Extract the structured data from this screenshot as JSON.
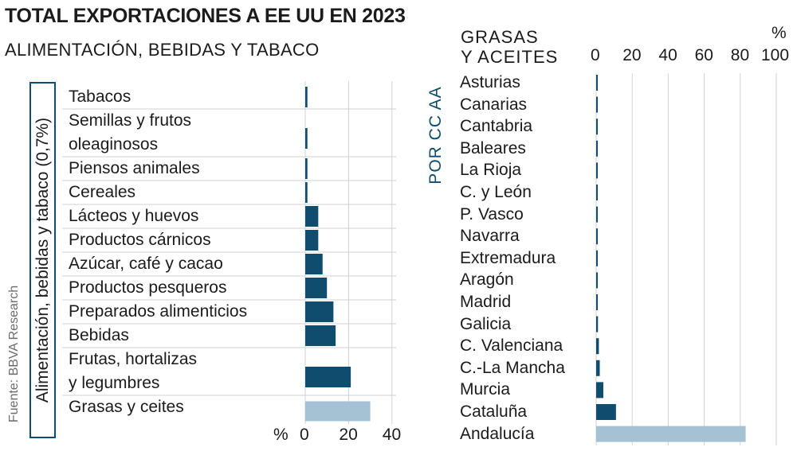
{
  "header": {
    "title": "TOTAL EXPORTACIONES A EE UU EN 2023",
    "subtitle": "ALIMENTACIÓN, BEBIDAS Y TABACO",
    "vertical_label": "Alimentación, bebidas y tabaco (0,7%)",
    "source": "Fuente: BBVA Research"
  },
  "right_header": {
    "title_line1": "GRASAS",
    "title_line2": "Y ACEITES",
    "unit": "%",
    "side_label": "POR CC AA"
  },
  "left_unit": "%",
  "colors": {
    "dark": "#0f4c6e",
    "highlight": "#a5c2d4",
    "grid": "#d2d2d2"
  },
  "chart_data": [
    {
      "type": "bar",
      "orientation": "horizontal",
      "title": "ALIMENTACIÓN, BEBIDAS Y TABACO",
      "unit": "%",
      "categories": [
        "Tabacos",
        "Semillas y frutos oleaginosos",
        "Piensos animales",
        "Cereales",
        "Lácteos y huevos",
        "Productos cárnicos",
        "Azúcar, café y cacao",
        "Productos pesqueros",
        "Preparados alimenticios",
        "Bebidas",
        "Frutas, hortalizas y legumbres",
        "Grasas y ceites"
      ],
      "category_lines": [
        [
          "Tabacos"
        ],
        [
          "Semillas y frutos",
          "oleaginosos"
        ],
        [
          "Piensos animales"
        ],
        [
          "Cereales"
        ],
        [
          "Lácteos y huevos"
        ],
        [
          "Productos cárnicos"
        ],
        [
          "Azúcar, café y cacao"
        ],
        [
          "Productos pesqueros"
        ],
        [
          "Preparados alimenticios"
        ],
        [
          "Bebidas"
        ],
        [
          "Frutas, hortalizas",
          "y legumbres"
        ],
        [
          "Grasas y ceites"
        ]
      ],
      "values": [
        1,
        1,
        1,
        1,
        6,
        6,
        8,
        10,
        13,
        14,
        21,
        30
      ],
      "highlight": "Grasas y ceites",
      "xlim": [
        0,
        40
      ],
      "xticks": [
        0,
        20,
        40
      ]
    },
    {
      "type": "bar",
      "orientation": "horizontal",
      "title": "GRASAS Y ACEITES",
      "unit": "%",
      "categories": [
        "Asturias",
        "Canarias",
        "Cantabria",
        "Baleares",
        "La Rioja",
        "C. y León",
        "P. Vasco",
        "Navarra",
        "Extremadura",
        "Aragón",
        "Madrid",
        "Galicia",
        "C. Valenciana",
        "C.-La Mancha",
        "Murcia",
        "Cataluña",
        "Andalucía"
      ],
      "values": [
        0.2,
        0.5,
        0.5,
        0.5,
        0.5,
        0.5,
        0.5,
        0.5,
        0.6,
        0.6,
        0.7,
        1,
        1.5,
        2,
        4,
        11,
        83
      ],
      "highlight": "Andalucía",
      "xlim": [
        0,
        100
      ],
      "xticks": [
        0,
        20,
        40,
        60,
        80,
        100
      ]
    }
  ]
}
